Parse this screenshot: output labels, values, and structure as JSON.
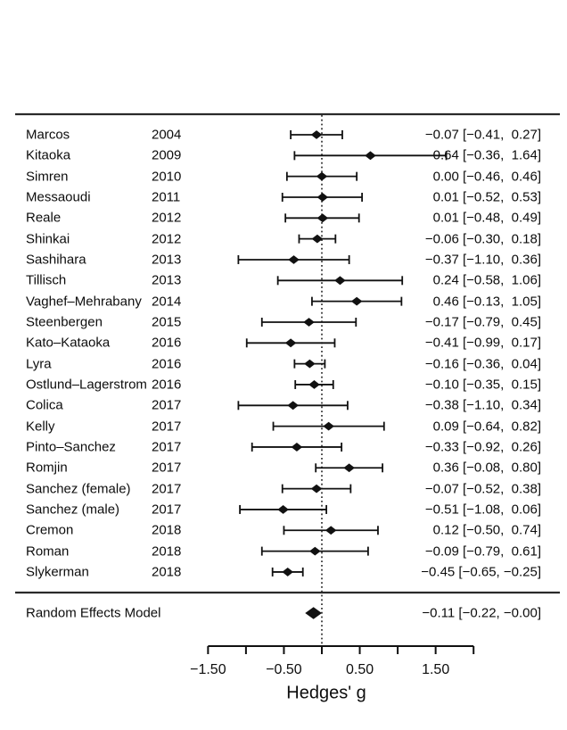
{
  "chart_data": {
    "type": "forest",
    "title": "",
    "xlabel": "Hedges' g",
    "x_axis": {
      "min": -1.5,
      "max": 2.0,
      "tick_step": 0.5,
      "labeled_ticks": [
        -1.5,
        -0.5,
        0.5,
        1.5
      ],
      "tick_labels": [
        "−1.50",
        "−0.50",
        "0.50",
        "1.50"
      ],
      "zero_reference_line": 0
    },
    "columns": {
      "study": "",
      "year": "",
      "estimate_ci": ""
    },
    "studies": [
      {
        "name": "Marcos",
        "year": "2004",
        "estimate": -0.07,
        "ci_lower": -0.41,
        "ci_upper": 0.27,
        "display": "−0.07 [−0.41,  0.27]"
      },
      {
        "name": "Kitaoka",
        "year": "2009",
        "estimate": 0.64,
        "ci_lower": -0.36,
        "ci_upper": 1.64,
        "display": "0.64 [−0.36,  1.64]"
      },
      {
        "name": "Simren",
        "year": "2010",
        "estimate": 0.0,
        "ci_lower": -0.46,
        "ci_upper": 0.46,
        "display": "0.00 [−0.46,  0.46]"
      },
      {
        "name": "Messaoudi",
        "year": "2011",
        "estimate": 0.01,
        "ci_lower": -0.52,
        "ci_upper": 0.53,
        "display": "0.01 [−0.52,  0.53]"
      },
      {
        "name": "Reale",
        "year": "2012",
        "estimate": 0.01,
        "ci_lower": -0.48,
        "ci_upper": 0.49,
        "display": "0.01 [−0.48,  0.49]"
      },
      {
        "name": "Shinkai",
        "year": "2012",
        "estimate": -0.06,
        "ci_lower": -0.3,
        "ci_upper": 0.18,
        "display": "−0.06 [−0.30,  0.18]"
      },
      {
        "name": "Sashihara",
        "year": "2013",
        "estimate": -0.37,
        "ci_lower": -1.1,
        "ci_upper": 0.36,
        "display": "−0.37 [−1.10,  0.36]"
      },
      {
        "name": "Tillisch",
        "year": "2013",
        "estimate": 0.24,
        "ci_lower": -0.58,
        "ci_upper": 1.06,
        "display": "0.24 [−0.58,  1.06]"
      },
      {
        "name": "Vaghef–Mehrabany",
        "year": "2014",
        "estimate": 0.46,
        "ci_lower": -0.13,
        "ci_upper": 1.05,
        "display": "0.46 [−0.13,  1.05]"
      },
      {
        "name": "Steenbergen",
        "year": "2015",
        "estimate": -0.17,
        "ci_lower": -0.79,
        "ci_upper": 0.45,
        "display": "−0.17 [−0.79,  0.45]"
      },
      {
        "name": "Kato–Kataoka",
        "year": "2016",
        "estimate": -0.41,
        "ci_lower": -0.99,
        "ci_upper": 0.17,
        "display": "−0.41 [−0.99,  0.17]"
      },
      {
        "name": "Lyra",
        "year": "2016",
        "estimate": -0.16,
        "ci_lower": -0.36,
        "ci_upper": 0.04,
        "display": "−0.16 [−0.36,  0.04]"
      },
      {
        "name": "Ostlund–Lagerstrom",
        "year": "2016",
        "estimate": -0.1,
        "ci_lower": -0.35,
        "ci_upper": 0.15,
        "display": "−0.10 [−0.35,  0.15]"
      },
      {
        "name": "Colica",
        "year": "2017",
        "estimate": -0.38,
        "ci_lower": -1.1,
        "ci_upper": 0.34,
        "display": "−0.38 [−1.10,  0.34]"
      },
      {
        "name": "Kelly",
        "year": "2017",
        "estimate": 0.09,
        "ci_lower": -0.64,
        "ci_upper": 0.82,
        "display": "0.09 [−0.64,  0.82]"
      },
      {
        "name": "Pinto–Sanchez",
        "year": "2017",
        "estimate": -0.33,
        "ci_lower": -0.92,
        "ci_upper": 0.26,
        "display": "−0.33 [−0.92,  0.26]"
      },
      {
        "name": "Romjin",
        "year": "2017",
        "estimate": 0.36,
        "ci_lower": -0.08,
        "ci_upper": 0.8,
        "display": "0.36 [−0.08,  0.80]"
      },
      {
        "name": "Sanchez (female)",
        "year": "2017",
        "estimate": -0.07,
        "ci_lower": -0.52,
        "ci_upper": 0.38,
        "display": "−0.07 [−0.52,  0.38]"
      },
      {
        "name": "Sanchez (male)",
        "year": "2017",
        "estimate": -0.51,
        "ci_lower": -1.08,
        "ci_upper": 0.06,
        "display": "−0.51 [−1.08,  0.06]"
      },
      {
        "name": "Cremon",
        "year": "2018",
        "estimate": 0.12,
        "ci_lower": -0.5,
        "ci_upper": 0.74,
        "display": "0.12 [−0.50,  0.74]"
      },
      {
        "name": "Roman",
        "year": "2018",
        "estimate": -0.09,
        "ci_lower": -0.79,
        "ci_upper": 0.61,
        "display": "−0.09 [−0.79,  0.61]"
      },
      {
        "name": "Slykerman",
        "year": "2018",
        "estimate": -0.45,
        "ci_lower": -0.65,
        "ci_upper": -0.25,
        "display": "−0.45 [−0.65, −0.25]"
      }
    ],
    "summary": {
      "label": "Random Effects Model",
      "estimate": -0.11,
      "ci_lower": -0.22,
      "ci_upper": 0,
      "display": "−0.11 [−0.22, −0.00]"
    },
    "colors": {
      "ink": "#111111",
      "rule": "#2a2a2a",
      "background": "#ffffff"
    }
  }
}
